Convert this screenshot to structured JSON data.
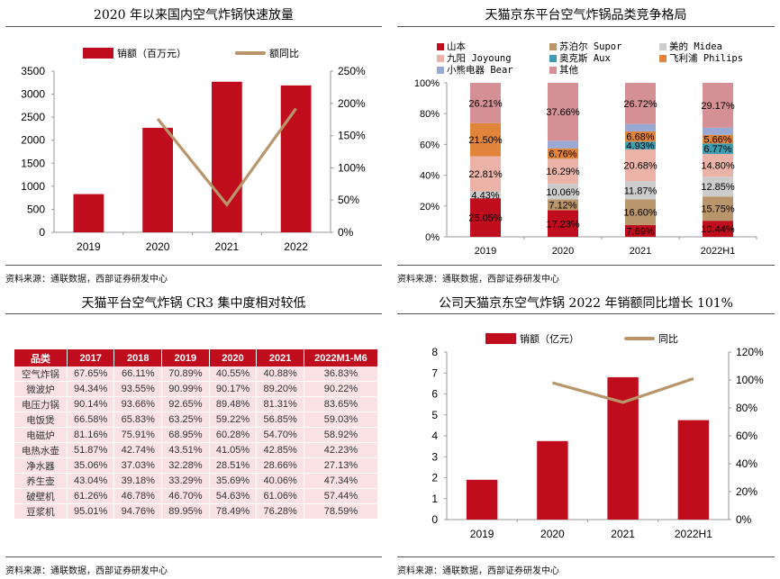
{
  "colors": {
    "red": "#c00d1e",
    "tan": "#b8956a",
    "table_header": "#c00d1e",
    "table_cell": "#f9e1e4"
  },
  "source_text": "资料来源：通联数据，西部证券研发中心",
  "chart_data": [
    {
      "id": "chart1",
      "type": "bar+line",
      "title": "2020 年以来国内空气炸锅快速放量",
      "categories": [
        "2019",
        "2020",
        "2021",
        "2022"
      ],
      "series": [
        {
          "name": "销额（百万元）",
          "kind": "bar",
          "axis": "left",
          "color": "#c00d1e",
          "values": [
            830,
            2270,
            3270,
            3190
          ]
        },
        {
          "name": "额同比",
          "kind": "line",
          "axis": "right",
          "color": "#b8956a",
          "values": [
            null,
            176,
            43,
            192
          ]
        }
      ],
      "y_left": {
        "min": 0,
        "max": 3500,
        "ticks": [
          "0",
          "500",
          "1000",
          "1500",
          "2000",
          "2500",
          "3000",
          "3500"
        ]
      },
      "y_right": {
        "min": 0,
        "max": 250,
        "ticks": [
          "0%",
          "50%",
          "100%",
          "150%",
          "200%",
          "250%"
        ]
      },
      "legend": "top",
      "grid": false
    },
    {
      "id": "chart2",
      "type": "stacked-bar",
      "title": "天猫京东平台空气炸锅品类竞争格局",
      "categories": [
        "2019",
        "2020",
        "2021",
        "2022H1"
      ],
      "series": [
        {
          "name": "山本",
          "color": "#c00d1e",
          "values": [
            25.05,
            17.23,
            7.69,
            10.44
          ],
          "labels": [
            "25.05%",
            "17.23%",
            "7.69%",
            "10.44%"
          ]
        },
        {
          "name": "苏泊尔 Supor",
          "color": "#b8956a",
          "values": [
            0,
            7.12,
            16.6,
            15.75
          ],
          "labels": [
            "",
            "7.12%",
            "16.60%",
            "15.75%"
          ]
        },
        {
          "name": "美的 Midea",
          "color": "#cccccc",
          "values": [
            4.43,
            10.06,
            11.87,
            12.85
          ],
          "labels": [
            "4.43%",
            "10.06%",
            "11.87%",
            "12.85%"
          ]
        },
        {
          "name": "九阳 Joyoung",
          "color": "#ebb3a8",
          "values": [
            22.81,
            16.29,
            20.68,
            14.8
          ],
          "labels": [
            "22.81%",
            "16.29%",
            "20.68%",
            "14.80%"
          ]
        },
        {
          "name": "奥克斯 Aux",
          "color": "#3f9bb0",
          "values": [
            0,
            0,
            4.93,
            6.77
          ],
          "labels": [
            "",
            "",
            "4.93%",
            "6.77%"
          ]
        },
        {
          "name": "飞利浦 Philips",
          "color": "#e0843a",
          "values": [
            21.5,
            6.76,
            6.68,
            5.66
          ],
          "labels": [
            "21.50%",
            "6.76%",
            "6.68%",
            "5.66%"
          ]
        },
        {
          "name": "小熊电器 Bear",
          "color": "#9aa9d4",
          "values": [
            0,
            4.88,
            4.83,
            4.56
          ],
          "labels": [
            "",
            "",
            "",
            ""
          ]
        },
        {
          "name": "其他",
          "color": "#d49095",
          "values": [
            26.21,
            37.66,
            26.72,
            29.17
          ],
          "labels": [
            "26.21%",
            "37.66%",
            "26.72%",
            "29.17%"
          ]
        }
      ],
      "y": {
        "min": 0,
        "max": 100,
        "ticks": [
          "0%",
          "20%",
          "40%",
          "60%",
          "80%",
          "100%"
        ]
      },
      "legend": "top",
      "grid": false
    },
    {
      "id": "chart3",
      "type": "table",
      "title": "天猫平台空气炸锅 CR3 集中度相对较低",
      "columns": [
        "品类",
        "2017",
        "2018",
        "2019",
        "2020",
        "2021",
        "2022M1-M6"
      ],
      "rows": [
        [
          "空气炸锅",
          "67.65%",
          "66.11%",
          "70.89%",
          "40.55%",
          "40.88%",
          "36.83%"
        ],
        [
          "微波炉",
          "94.34%",
          "93.55%",
          "90.99%",
          "90.17%",
          "89.20%",
          "90.22%"
        ],
        [
          "电压力锅",
          "90.14%",
          "93.66%",
          "92.65%",
          "89.48%",
          "81.31%",
          "83.65%"
        ],
        [
          "电饭煲",
          "66.58%",
          "65.83%",
          "63.25%",
          "59.22%",
          "56.85%",
          "59.03%"
        ],
        [
          "电磁炉",
          "81.16%",
          "75.91%",
          "68.95%",
          "60.28%",
          "54.70%",
          "58.92%"
        ],
        [
          "电热水壶",
          "51.87%",
          "42.74%",
          "43.51%",
          "41.05%",
          "42.85%",
          "42.23%"
        ],
        [
          "净水器",
          "35.06%",
          "37.03%",
          "32.28%",
          "28.51%",
          "28.66%",
          "27.13%"
        ],
        [
          "养生壶",
          "43.04%",
          "39.18%",
          "33.29%",
          "35.69%",
          "40.06%",
          "47.34%"
        ],
        [
          "破壁机",
          "61.26%",
          "46.78%",
          "46.70%",
          "54.63%",
          "61.06%",
          "57.44%"
        ],
        [
          "豆浆机",
          "95.01%",
          "94.76%",
          "89.95%",
          "78.49%",
          "76.28%",
          "78.59%"
        ]
      ]
    },
    {
      "id": "chart4",
      "type": "bar+line",
      "title": "公司天猫京东空气炸锅 2022 年销额同比增长 101%",
      "categories": [
        "2019",
        "2020",
        "2021",
        "2022H1"
      ],
      "series": [
        {
          "name": "销额（亿元）",
          "kind": "bar",
          "axis": "left",
          "color": "#c00d1e",
          "values": [
            1.9,
            3.75,
            6.8,
            4.75
          ]
        },
        {
          "name": "同比",
          "kind": "line",
          "axis": "right",
          "color": "#b8956a",
          "values": [
            null,
            98,
            84,
            101
          ]
        }
      ],
      "y_left": {
        "min": 0,
        "max": 8,
        "ticks": [
          "0",
          "1",
          "2",
          "3",
          "4",
          "5",
          "6",
          "7",
          "8"
        ]
      },
      "y_right": {
        "min": 0,
        "max": 120,
        "ticks": [
          "0%",
          "20%",
          "40%",
          "60%",
          "80%",
          "100%",
          "120%"
        ]
      },
      "legend": "top",
      "grid": false
    }
  ]
}
